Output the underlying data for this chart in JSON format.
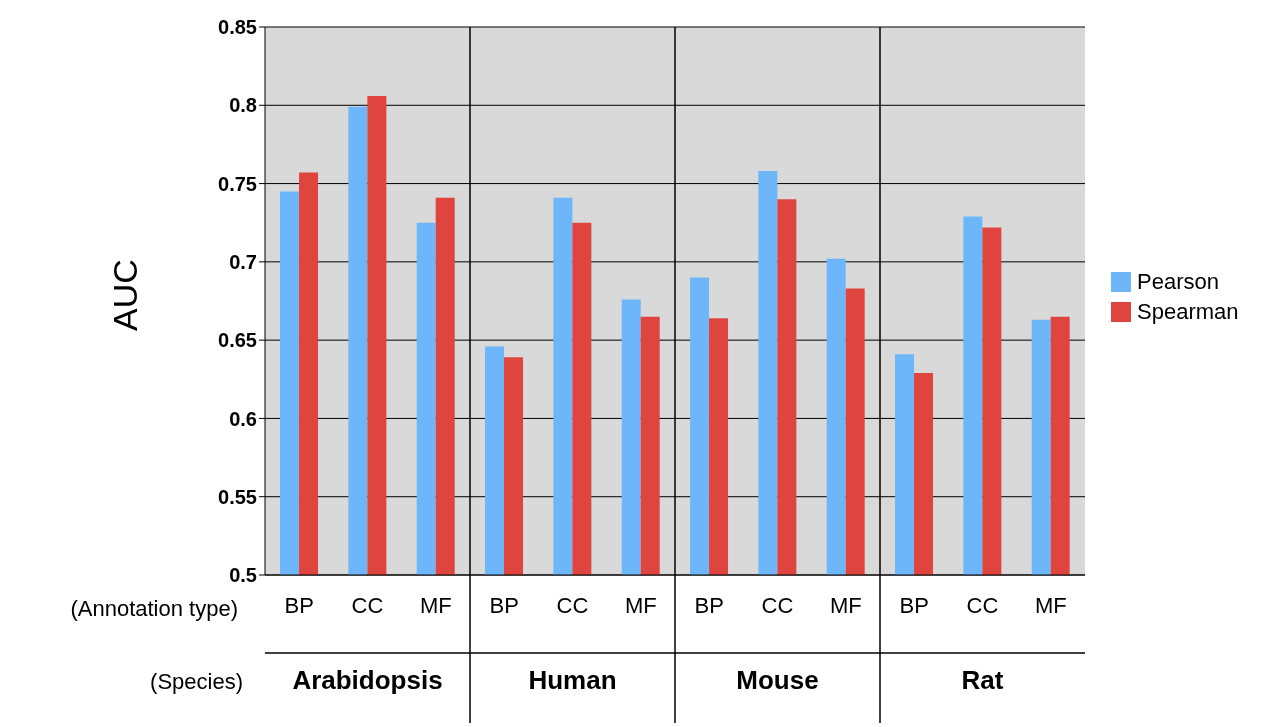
{
  "chart_data": {
    "type": "bar",
    "ylabel": "AUC",
    "categories": [
      "BP",
      "CC",
      "MF",
      "BP",
      "CC",
      "MF",
      "BP",
      "CC",
      "MF",
      "BP",
      "CC",
      "MF"
    ],
    "series": [
      {
        "name": "Pearson",
        "color": "#6db6f9",
        "values": [
          0.745,
          0.799,
          0.725,
          0.646,
          0.741,
          0.676,
          0.69,
          0.758,
          0.702,
          0.641,
          0.729,
          0.663
        ]
      },
      {
        "name": "Spearman",
        "color": "#e0443f",
        "values": [
          0.757,
          0.806,
          0.741,
          0.639,
          0.725,
          0.665,
          0.664,
          0.74,
          0.683,
          0.629,
          0.722,
          0.665
        ]
      }
    ],
    "ylim": [
      0.5,
      0.85
    ],
    "yticks": [
      0.5,
      0.55,
      0.6,
      0.65,
      0.7,
      0.75,
      0.8,
      0.85
    ],
    "grid": "y",
    "legend": "right",
    "annotations": [
      "(Annotation type)",
      "(Species)",
      "Arabidopsis",
      "Human",
      "Mouse",
      "Rat"
    ]
  }
}
